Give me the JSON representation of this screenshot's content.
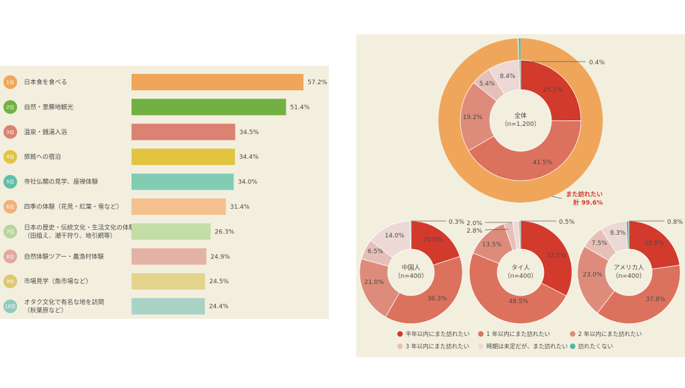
{
  "colors": {
    "panel_bg": "#f3efdf",
    "half_year": "#d23a2b",
    "one_year": "#dc715d",
    "two_years": "#dd8c7c",
    "three_years": "#e6c0b8",
    "undecided": "#ecd8d4",
    "no_revisit": "#4fb8a6",
    "outer_ring": "#efa65a"
  },
  "chart_data": [
    {
      "type": "bar",
      "orientation": "horizontal",
      "ranks": [
        "1位",
        "2位",
        "3位",
        "4位",
        "5位",
        "6位",
        "7位",
        "8位",
        "9位",
        "10位"
      ],
      "categories": [
        [
          "日本食を食べる"
        ],
        [
          "自然・景勝地観光"
        ],
        [
          "温泉・銭湯入浴"
        ],
        [
          "旅館への宿泊"
        ],
        [
          "寺社仏閣の見学、座禅体験"
        ],
        [
          "四季の体験（花見・紅葉・雪など）"
        ],
        [
          "日本の歴史・伝統文化・生活文化の体験",
          "（田植え、潮干狩り、地引網等）"
        ],
        [
          "自然体験ツアー・農漁村体験"
        ],
        [
          "市場見学（魚市場など）"
        ],
        [
          "オタク文化で有名な地を訪問",
          "（秋葉原など）"
        ]
      ],
      "values": [
        57.2,
        51.4,
        34.5,
        34.4,
        34.0,
        31.4,
        26.3,
        24.9,
        24.5,
        24.4
      ],
      "value_labels": [
        "57.2%",
        "51.4%",
        "34.5%",
        "34.4%",
        "34.0%",
        "31.4%",
        "26.3%",
        "24.9%",
        "24.5%",
        "24.4%"
      ],
      "bar_colors": [
        "#efa65a",
        "#72b043",
        "#dc8272",
        "#e2c441",
        "#80cdb4",
        "#f3c08e",
        "#c4dca6",
        "#e4b3a6",
        "#e4d48c",
        "#a9d3c5"
      ],
      "rank_colors": [
        "#efa65a",
        "#72b043",
        "#dc8272",
        "#e2c441",
        "#5fbfa9",
        "#f0b27a",
        "#b7d69a",
        "#e0a8a0",
        "#dcc86e",
        "#93c9bd"
      ],
      "xlim": [
        0,
        60
      ]
    },
    {
      "type": "pie",
      "subtype": "donut",
      "legend": [
        "半年以内にまた訪れたい",
        "1 年以内にまた訪れたい",
        "2 年以内にまた訪れたい",
        "3 年以内にまた訪れたい",
        "時期は未定だが、また訪れたい",
        "訪れたくない"
      ],
      "legend_placement": "bottom",
      "charts": [
        {
          "center_label": [
            "全体",
            "（n=1,200）"
          ],
          "values": [
            25.1,
            41.5,
            19.2,
            5.4,
            8.4,
            0.4
          ],
          "labels": [
            "25.1%",
            "41.5%",
            "19.2%",
            "5.4%",
            "8.4%",
            "0.4%"
          ]
        },
        {
          "center_label": [
            "中国人",
            "（n=400）"
          ],
          "values": [
            20.0,
            38.3,
            21.0,
            6.5,
            14.0,
            0.3
          ],
          "labels": [
            "20.0%",
            "38.3%",
            "21.0%",
            "6.5%",
            "14.0%",
            "0.3%"
          ]
        },
        {
          "center_label": [
            "タイ人",
            "（n=400）"
          ],
          "values": [
            32.5,
            48.5,
            13.5,
            2.8,
            2.0,
            0.5
          ],
          "labels": [
            "32.5%",
            "48.5%",
            "13.5%",
            "2.8%",
            "2.0%",
            "0.5%"
          ]
        },
        {
          "center_label": [
            "アメリカ人",
            "（n=400）"
          ],
          "values": [
            22.8,
            37.8,
            23.0,
            7.5,
            8.3,
            0.8
          ],
          "labels": [
            "22.8%",
            "37.8%",
            "23.0%",
            "7.5%",
            "8.3%",
            "0.8%"
          ]
        }
      ],
      "total": {
        "label": "また訪れたい",
        "value": "計 99.6%"
      }
    }
  ]
}
